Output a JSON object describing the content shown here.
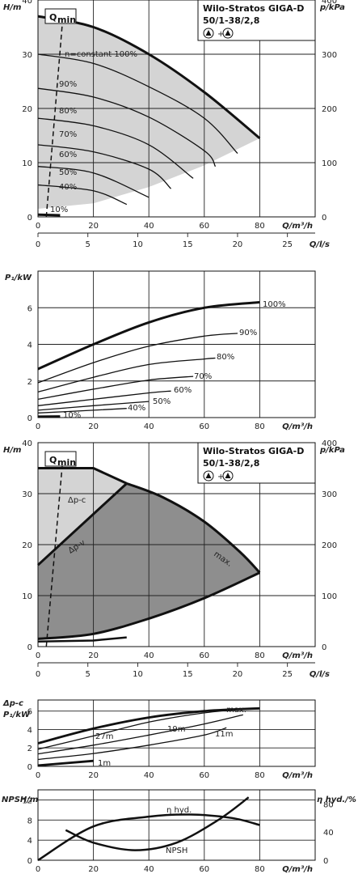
{
  "chart_data": [
    {
      "type": "line",
      "title": "Wilo-Stratos GIGA-D",
      "subtitle": "50/1-38/2,8",
      "pump_mode_note": "+",
      "ylabel": "H/m",
      "ylabel_right": "p/kPa",
      "xlabel": "Q/m³/h",
      "xlabel_2": "Q/l/s",
      "xlim": [
        0,
        100
      ],
      "ylim": [
        0,
        40
      ],
      "xticks": [
        "0",
        "20",
        "40",
        "60",
        "80"
      ],
      "xticks_2": [
        "0",
        "5",
        "10",
        "15",
        "20",
        "25"
      ],
      "yticks": [
        "0",
        "10",
        "20",
        "30",
        "40"
      ],
      "yticks_right": [
        "0",
        "100",
        "200",
        "300",
        "400"
      ],
      "qmin_label": "Q",
      "qmin_sub": "min",
      "series": [
        {
          "name": "n=constant 100%",
          "x": [
            0,
            20,
            40,
            60,
            80
          ],
          "y": [
            37,
            35,
            30,
            23,
            14.5
          ]
        },
        {
          "name": "90%",
          "x": [
            0,
            20,
            40,
            60,
            72
          ],
          "y": [
            30,
            28.3,
            24,
            18.2,
            11.7
          ]
        },
        {
          "name": "80%",
          "x": [
            0,
            20,
            40,
            60,
            64
          ],
          "y": [
            23.7,
            22.1,
            18.4,
            12.2,
            9.3
          ]
        },
        {
          "name": "70%",
          "x": [
            0,
            20,
            40,
            56
          ],
          "y": [
            18.2,
            16.8,
            13.3,
            7.1
          ]
        },
        {
          "name": "60%",
          "x": [
            0,
            20,
            40,
            48
          ],
          "y": [
            13.3,
            12,
            8.8,
            5.2
          ]
        },
        {
          "name": "50%",
          "x": [
            0,
            20,
            40
          ],
          "y": [
            9.3,
            8.1,
            3.6
          ]
        },
        {
          "name": "40%",
          "x": [
            0,
            20,
            32
          ],
          "y": [
            5.9,
            4.8,
            2.3
          ]
        },
        {
          "name": "10%",
          "x": [
            0,
            8
          ],
          "y": [
            0.4,
            0.3
          ]
        }
      ],
      "qmin_line": {
        "x": [
          3,
          9
        ],
        "y": [
          0,
          37
        ]
      }
    },
    {
      "type": "line",
      "ylabel": "P₁/kW",
      "xlabel": "Q/m³/h",
      "xlim": [
        0,
        100
      ],
      "ylim": [
        0,
        8
      ],
      "xticks": [
        "0",
        "20",
        "40",
        "60",
        "80"
      ],
      "yticks": [
        "0",
        "2",
        "4",
        "6"
      ],
      "series": [
        {
          "name": "100%",
          "x": [
            0,
            20,
            40,
            60,
            80
          ],
          "y": [
            2.65,
            4,
            5.2,
            6,
            6.3
          ]
        },
        {
          "name": "90%",
          "x": [
            0,
            20,
            40,
            60,
            72
          ],
          "y": [
            1.9,
            3,
            3.9,
            4.45,
            4.6
          ]
        },
        {
          "name": "80%",
          "x": [
            0,
            20,
            40,
            60,
            64
          ],
          "y": [
            1.4,
            2.2,
            2.9,
            3.2,
            3.25
          ]
        },
        {
          "name": "70%",
          "x": [
            0,
            20,
            40,
            56
          ],
          "y": [
            1,
            1.55,
            2.05,
            2.25
          ]
        },
        {
          "name": "60%",
          "x": [
            0,
            20,
            40,
            48
          ],
          "y": [
            0.65,
            1,
            1.35,
            1.45
          ]
        },
        {
          "name": "50%",
          "x": [
            0,
            20,
            40
          ],
          "y": [
            0.4,
            0.65,
            0.88
          ]
        },
        {
          "name": "40%",
          "x": [
            0,
            20,
            32
          ],
          "y": [
            0.25,
            0.4,
            0.5
          ]
        },
        {
          "name": "10%",
          "x": [
            0,
            8
          ],
          "y": [
            0.05,
            0.06
          ]
        }
      ]
    },
    {
      "type": "area",
      "title": "Wilo-Stratos GIGA-D",
      "subtitle": "50/1-38/2,8",
      "pump_mode_note": "+",
      "ylabel": "H/m",
      "ylabel_right": "p/kPa",
      "xlabel": "Q/m³/h",
      "xlabel_2": "Q/l/s",
      "xlim": [
        0,
        100
      ],
      "ylim": [
        0,
        40
      ],
      "xticks": [
        "0",
        "20",
        "40",
        "60",
        "80"
      ],
      "xticks_2": [
        "0",
        "5",
        "10",
        "15",
        "20",
        "25"
      ],
      "yticks": [
        "0",
        "10",
        "20",
        "30",
        "40"
      ],
      "yticks_right": [
        "0",
        "100",
        "200",
        "300",
        "400"
      ],
      "qmin_label": "Q",
      "qmin_sub": "min",
      "labels": {
        "dpc": "Δp-c",
        "dpv": "Δp-v",
        "max": "max."
      },
      "series": [
        {
          "name": "Δp-c",
          "x": [
            0,
            20,
            32
          ],
          "y": [
            35,
            35,
            32
          ]
        },
        {
          "name": "Δp-v",
          "x": [
            0,
            32
          ],
          "y": [
            16,
            32
          ]
        },
        {
          "name": "max.",
          "x": [
            32,
            45,
            60,
            73,
            80
          ],
          "y": [
            32,
            29.3,
            24.5,
            18.5,
            14.5
          ]
        },
        {
          "name": "min.",
          "x": [
            0,
            20,
            40,
            60,
            80
          ],
          "y": [
            1.5,
            2.5,
            5.5,
            9.5,
            14.5
          ]
        }
      ],
      "qmin_line": {
        "x": [
          3,
          9
        ],
        "y": [
          0,
          37
        ]
      }
    },
    {
      "type": "line",
      "ylabel": "Δp-c",
      "ylabel_2": "P₁/kW",
      "xlabel": "Q/m³/h",
      "xlim": [
        0,
        100
      ],
      "ylim": [
        0,
        7.2
      ],
      "xticks": [
        "0",
        "20",
        "40",
        "60",
        "80"
      ],
      "yticks": [
        "0",
        "2",
        "4",
        "6"
      ],
      "labels": {
        "max": "max.",
        "m27": "27m",
        "m19": "19m",
        "m11": "11m",
        "m1": "1m"
      },
      "series": [
        {
          "name": "max.",
          "x": [
            0,
            20,
            40,
            60,
            80
          ],
          "y": [
            2.5,
            4.1,
            5.3,
            6,
            6.3
          ]
        },
        {
          "name": "27m",
          "x": [
            0,
            20,
            40,
            60,
            78
          ],
          "y": [
            1.85,
            3.3,
            4.8,
            5.8,
            6.3
          ]
        },
        {
          "name": "19m",
          "x": [
            0,
            20,
            40,
            60,
            74
          ],
          "y": [
            1.35,
            2.3,
            3.4,
            4.6,
            5.6
          ]
        },
        {
          "name": "11m",
          "x": [
            0,
            20,
            40,
            60,
            68
          ],
          "y": [
            0.75,
            1.4,
            2.3,
            3.4,
            4.2
          ]
        },
        {
          "name": "1m",
          "x": [
            0,
            20
          ],
          "y": [
            0.1,
            0.6
          ]
        }
      ]
    },
    {
      "type": "line",
      "ylabel": "NPSH/m",
      "ylabel_right": "η hyd./%",
      "xlabel": "Q/m³/h",
      "xlim": [
        0,
        100
      ],
      "ylim": [
        0,
        14
      ],
      "xticks": [
        "0",
        "20",
        "40",
        "60",
        "80"
      ],
      "yticks": [
        "0",
        "4",
        "8",
        "12"
      ],
      "yticks_right": [
        "0",
        "40",
        "80"
      ],
      "labels": {
        "eta": "η hyd.",
        "npsh": "NPSH"
      },
      "series": [
        {
          "name": "η hyd.",
          "x": [
            0,
            20,
            40,
            55,
            70,
            80
          ],
          "y_right_percent": [
            0,
            48,
            62,
            65,
            60,
            50
          ]
        },
        {
          "name": "NPSH",
          "x": [
            10,
            20,
            35,
            50,
            65,
            76
          ],
          "y": [
            6,
            3.5,
            2,
            3.5,
            8,
            12.5
          ]
        }
      ]
    }
  ]
}
